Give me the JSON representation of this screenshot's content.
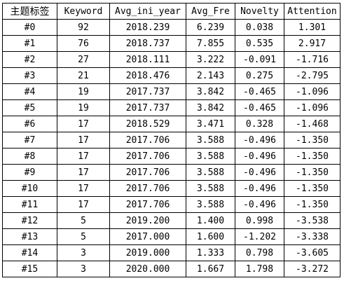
{
  "table": {
    "headers": [
      "主题标签",
      "Keyword",
      "Avg_ini_year",
      "Avg_Fre",
      "Novelty",
      "Attention"
    ],
    "rows": [
      [
        "#0",
        "92",
        "2018.239",
        "6.239",
        "0.038",
        "1.301"
      ],
      [
        "#1",
        "76",
        "2018.737",
        "7.855",
        "0.535",
        "2.917"
      ],
      [
        "#2",
        "27",
        "2018.111",
        "3.222",
        "-0.091",
        "-1.716"
      ],
      [
        "#3",
        "21",
        "2018.476",
        "2.143",
        "0.275",
        "-2.795"
      ],
      [
        "#4",
        "19",
        "2017.737",
        "3.842",
        "-0.465",
        "-1.096"
      ],
      [
        "#5",
        "19",
        "2017.737",
        "3.842",
        "-0.465",
        "-1.096"
      ],
      [
        "#6",
        "17",
        "2018.529",
        "3.471",
        "0.328",
        "-1.468"
      ],
      [
        "#7",
        "17",
        "2017.706",
        "3.588",
        "-0.496",
        "-1.350"
      ],
      [
        "#8",
        "17",
        "2017.706",
        "3.588",
        "-0.496",
        "-1.350"
      ],
      [
        "#9",
        "17",
        "2017.706",
        "3.588",
        "-0.496",
        "-1.350"
      ],
      [
        "#10",
        "17",
        "2017.706",
        "3.588",
        "-0.496",
        "-1.350"
      ],
      [
        "#11",
        "17",
        "2017.706",
        "3.588",
        "-0.496",
        "-1.350"
      ],
      [
        "#12",
        "5",
        "2019.200",
        "1.400",
        "0.998",
        "-3.538"
      ],
      [
        "#13",
        "5",
        "2017.000",
        "1.600",
        "-1.202",
        "-3.338"
      ],
      [
        "#14",
        "3",
        "2019.000",
        "1.333",
        "0.798",
        "-3.605"
      ],
      [
        "#15",
        "3",
        "2020.000",
        "1.667",
        "1.798",
        "-3.272"
      ]
    ]
  }
}
